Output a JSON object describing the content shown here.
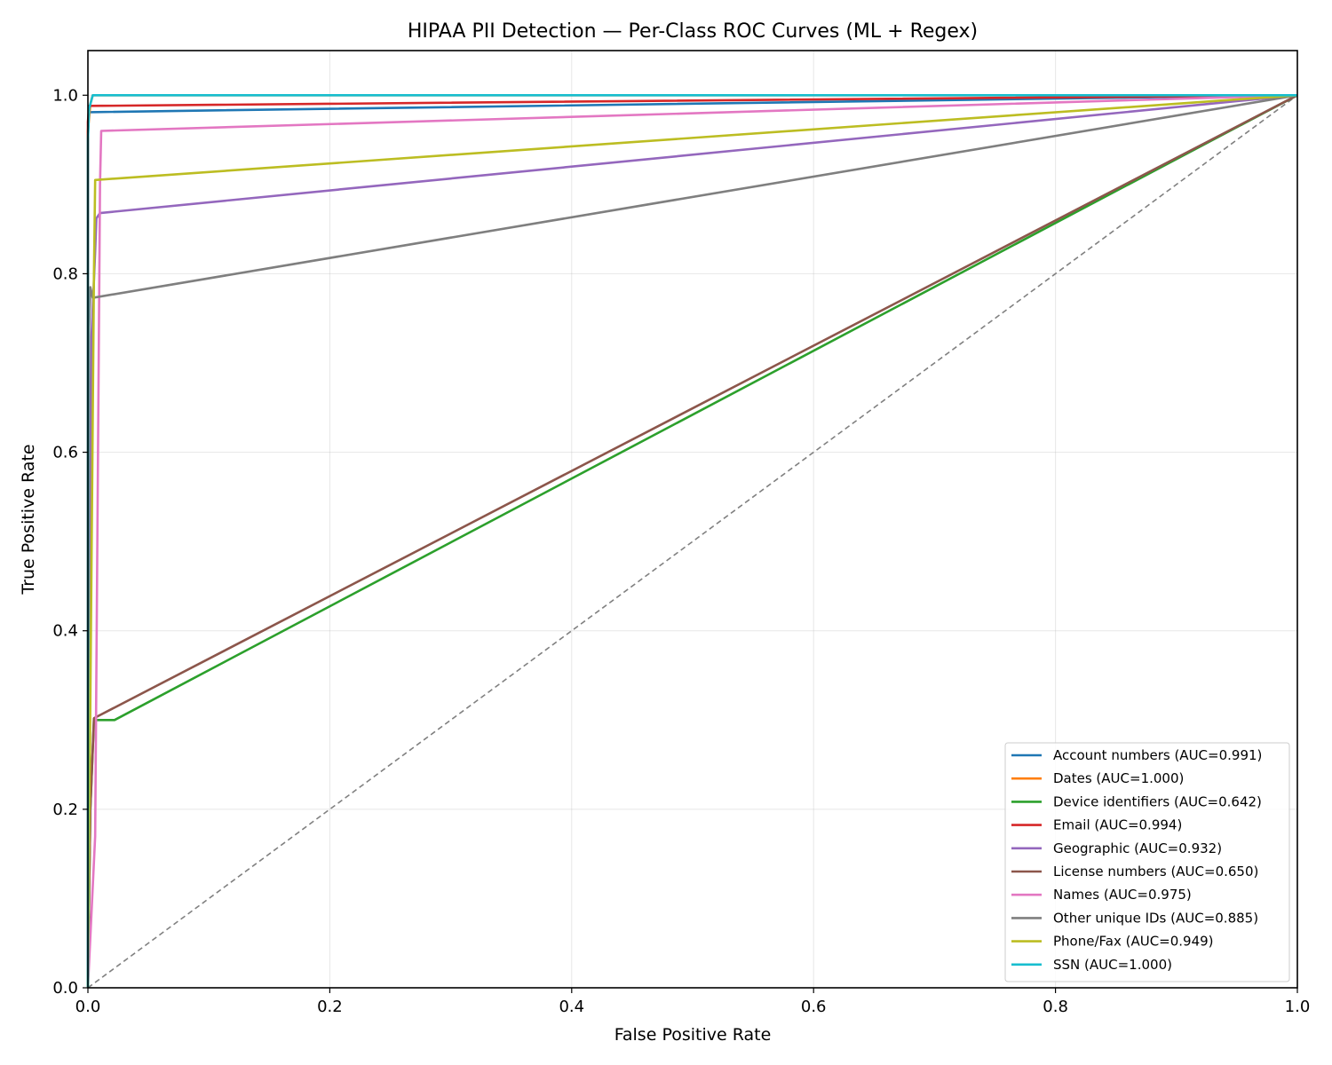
{
  "chart_data": {
    "type": "line",
    "title": "HIPAA PII Detection — Per-Class ROC Curves (ML + Regex)",
    "xlabel": "False Positive Rate",
    "ylabel": "True Positive Rate",
    "xlim": [
      0.0,
      1.0
    ],
    "ylim": [
      0.0,
      1.05
    ],
    "xticks": [
      0.0,
      0.2,
      0.4,
      0.6,
      0.8,
      1.0
    ],
    "yticks": [
      0.0,
      0.2,
      0.4,
      0.6,
      0.8,
      1.0
    ],
    "xtick_labels": [
      "0.0",
      "0.2",
      "0.4",
      "0.6",
      "0.8",
      "1.0"
    ],
    "ytick_labels": [
      "0.0",
      "0.2",
      "0.4",
      "0.6",
      "0.8",
      "1.0"
    ],
    "grid": true,
    "legend_position": "lower-right",
    "series": [
      {
        "name": "Account numbers (AUC=0.991)",
        "color": "#1f77b4",
        "x": [
          0.0,
          0.0,
          0.0005,
          0.001,
          1.0
        ],
        "y": [
          0.0,
          0.95,
          0.975,
          0.981,
          1.0
        ]
      },
      {
        "name": "Dates (AUC=1.000)",
        "color": "#ff7f0e",
        "x": [
          0.0,
          0.0,
          0.002,
          0.004,
          1.0
        ],
        "y": [
          0.0,
          0.96,
          0.99,
          1.0,
          1.0
        ]
      },
      {
        "name": "Device identifiers (AUC=0.642)",
        "color": "#2ca02c",
        "x": [
          0.0,
          0.002,
          0.005,
          0.022,
          1.0
        ],
        "y": [
          0.0,
          0.2,
          0.3,
          0.3,
          1.0
        ]
      },
      {
        "name": "Email (AUC=0.994)",
        "color": "#d62728",
        "x": [
          0.0,
          0.0,
          0.001,
          1.0
        ],
        "y": [
          0.0,
          0.97,
          0.988,
          1.0
        ]
      },
      {
        "name": "Geographic (AUC=0.932)",
        "color": "#9467bd",
        "x": [
          0.0,
          0.003,
          0.006,
          0.007,
          0.01,
          1.0
        ],
        "y": [
          0.0,
          0.73,
          0.825,
          0.862,
          0.868,
          1.0
        ]
      },
      {
        "name": "License numbers (AUC=0.650)",
        "color": "#8c564b",
        "x": [
          0.0,
          0.002,
          0.005,
          1.0
        ],
        "y": [
          0.0,
          0.2,
          0.302,
          1.0
        ]
      },
      {
        "name": "Names (AUC=0.975)",
        "color": "#e377c2",
        "x": [
          0.0,
          0.006,
          0.01,
          0.011,
          1.0
        ],
        "y": [
          0.0,
          0.17,
          0.9,
          0.96,
          1.0
        ]
      },
      {
        "name": "Other unique IDs (AUC=0.885)",
        "color": "#7f7f7f",
        "x": [
          0.0,
          0.001,
          0.002,
          0.004,
          1.0
        ],
        "y": [
          0.0,
          0.74,
          0.785,
          0.773,
          1.0
        ]
      },
      {
        "name": "Phone/Fax (AUC=0.949)",
        "color": "#bcbd22",
        "x": [
          0.0,
          0.005,
          0.006,
          1.0
        ],
        "y": [
          0.0,
          0.8,
          0.905,
          1.0
        ]
      },
      {
        "name": "SSN (AUC=1.000)",
        "color": "#17becf",
        "x": [
          0.0,
          0.0,
          0.001,
          0.004,
          1.0
        ],
        "y": [
          0.0,
          0.95,
          0.985,
          1.0,
          1.0
        ]
      }
    ],
    "reference_line": {
      "x": [
        0.0,
        1.0
      ],
      "y": [
        0.0,
        1.0
      ],
      "color": "#808080"
    }
  }
}
